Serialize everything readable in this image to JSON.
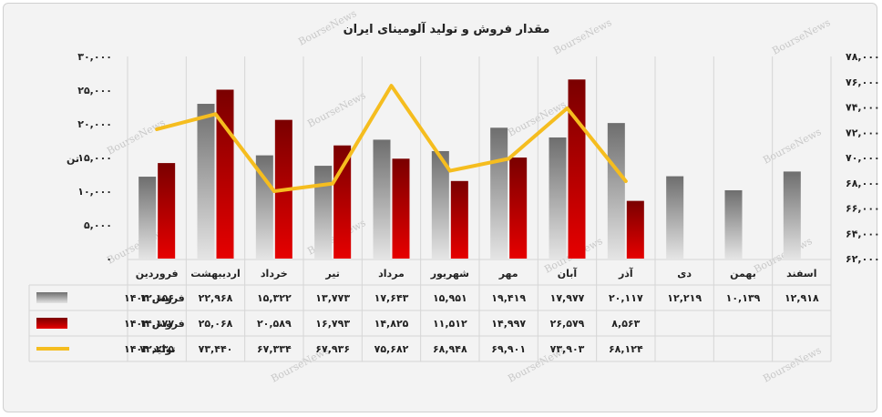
{
  "chart_data": {
    "type": "bar",
    "title": "مقدار فروش و تولید آلومینای ایران",
    "ylabel": "تن",
    "categories": [
      "فروردین",
      "اردیبهشت",
      "خرداد",
      "تیر",
      "مرداد",
      "شهریور",
      "مهر",
      "آبان",
      "آذر",
      "دی",
      "بهمن",
      "اسفند"
    ],
    "ylim": [
      0,
      30000
    ],
    "y2lim": [
      62000,
      78000
    ],
    "yticks": [
      "۰",
      "۵,۰۰۰",
      "۱۰,۰۰۰",
      "۱۵,۰۰۰",
      "۲۰,۰۰۰",
      "۲۵,۰۰۰",
      "۳۰,۰۰۰"
    ],
    "y2ticks": [
      "۶۲,۰۰۰",
      "۶۴,۰۰۰",
      "۶۶,۰۰۰",
      "۶۸,۰۰۰",
      "۷۰,۰۰۰",
      "۷۲,۰۰۰",
      "۷۴,۰۰۰",
      "۷۶,۰۰۰",
      "۷۸,۰۰۰"
    ],
    "series": [
      {
        "name": "فروش ۱۴۰۳",
        "type": "bar",
        "color": "#8a8a8a",
        "values": [
          12156,
          22968,
          15322,
          13773,
          17643,
          15951,
          19419,
          17977,
          20117,
          12219,
          10139,
          12918
        ],
        "labels": [
          "۱۲,۱۵۶",
          "۲۲,۹۶۸",
          "۱۵,۳۲۲",
          "۱۳,۷۷۳",
          "۱۷,۶۴۳",
          "۱۵,۹۵۱",
          "۱۹,۴۱۹",
          "۱۷,۹۷۷",
          "۲۰,۱۱۷",
          "۱۲,۲۱۹",
          "۱۰,۱۳۹",
          "۱۲,۹۱۸"
        ]
      },
      {
        "name": "فروش ۱۴۰۴",
        "type": "bar",
        "color": "#c00000",
        "values": [
          14177,
          25068,
          20589,
          16793,
          14825,
          11512,
          14997,
          26579,
          8563,
          null,
          null,
          null
        ],
        "labels": [
          "۱۴,۱۷۷",
          "۲۵,۰۶۸",
          "۲۰,۵۸۹",
          "۱۶,۷۹۳",
          "۱۴,۸۲۵",
          "۱۱,۵۱۲",
          "۱۴,۹۹۷",
          "۲۶,۵۷۹",
          "۸,۵۶۳",
          "",
          "",
          ""
        ]
      },
      {
        "name": "تولید ۱۴۰۴",
        "type": "line",
        "axis": "right",
        "color": "#f5bd1f",
        "values": [
          72235,
          73440,
          67334,
          67936,
          75682,
          68948,
          69901,
          73903,
          68124,
          null,
          null,
          null
        ],
        "labels": [
          "۷۲,۲۳۵",
          "۷۳,۴۴۰",
          "۶۷,۳۳۴",
          "۶۷,۹۳۶",
          "۷۵,۶۸۲",
          "۶۸,۹۴۸",
          "۶۹,۹۰۱",
          "۷۳,۹۰۳",
          "۶۸,۱۲۴",
          "",
          "",
          ""
        ]
      }
    ],
    "legend": "table-left",
    "grid": false,
    "watermark": "BourseNews"
  }
}
